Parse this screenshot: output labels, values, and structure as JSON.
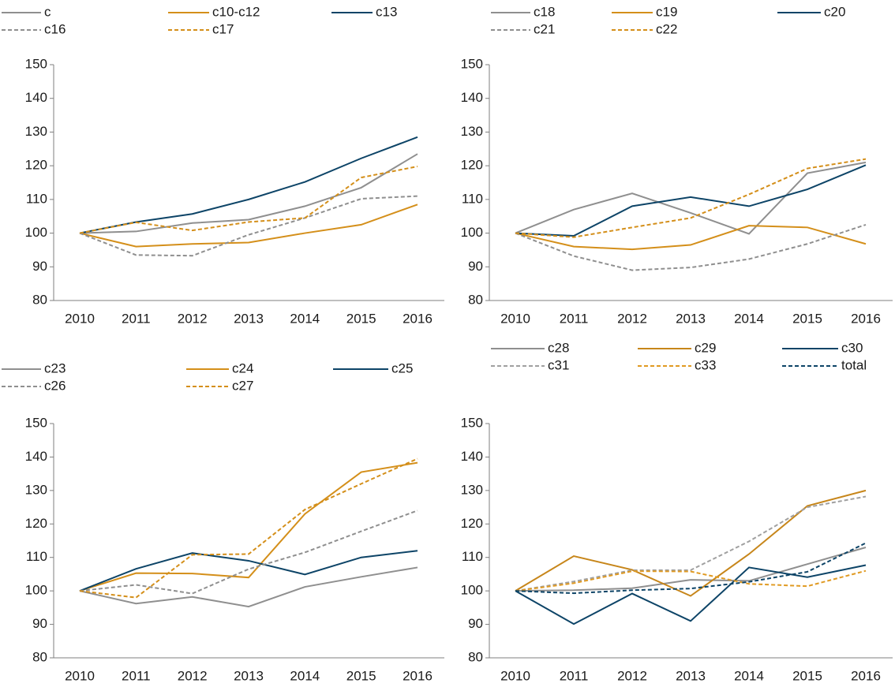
{
  "chart_data": [
    {
      "type": "line",
      "categories": [
        "2010",
        "2011",
        "2012",
        "2013",
        "2014",
        "2015",
        "2016"
      ],
      "ylim": [
        80,
        150
      ],
      "yticks": [
        80,
        90,
        100,
        110,
        120,
        130,
        140,
        150
      ],
      "series": [
        {
          "name": "c",
          "color": "#8f8f8f",
          "dashed": false,
          "values": [
            100,
            100.5,
            103,
            104,
            108,
            113.5,
            123.5
          ]
        },
        {
          "name": "c10-c12",
          "color": "#d48f1a",
          "dashed": false,
          "values": [
            100,
            96,
            96.8,
            97.2,
            100,
            102.5,
            108.5
          ]
        },
        {
          "name": "c13",
          "color": "#0d4467",
          "dashed": false,
          "values": [
            100,
            103.3,
            105.7,
            110,
            115.2,
            122.2,
            128.5
          ]
        },
        {
          "name": "c16",
          "color": "#8f8f8f",
          "dashed": true,
          "values": [
            100,
            93.5,
            93.3,
            99.5,
            104.5,
            110.2,
            111
          ]
        },
        {
          "name": "c17",
          "color": "#d48f1a",
          "dashed": true,
          "values": [
            100,
            103.2,
            100.8,
            103.3,
            104.5,
            116.5,
            119.8
          ]
        }
      ]
    },
    {
      "type": "line",
      "categories": [
        "2010",
        "2011",
        "2012",
        "2013",
        "2014",
        "2015",
        "2016"
      ],
      "ylim": [
        80,
        150
      ],
      "yticks": [
        80,
        90,
        100,
        110,
        120,
        130,
        140,
        150
      ],
      "series": [
        {
          "name": "c18",
          "color": "#8f8f8f",
          "dashed": false,
          "values": [
            100,
            107,
            111.8,
            106,
            99.8,
            117.8,
            121
          ]
        },
        {
          "name": "c19",
          "color": "#d48f1a",
          "dashed": false,
          "values": [
            100,
            96,
            95.2,
            96.5,
            102.2,
            101.7,
            96.8
          ]
        },
        {
          "name": "c20",
          "color": "#0d4467",
          "dashed": false,
          "values": [
            100,
            99.2,
            108,
            110.7,
            108,
            113,
            120.2
          ]
        },
        {
          "name": "c21",
          "color": "#8f8f8f",
          "dashed": true,
          "values": [
            100,
            93.2,
            89,
            89.8,
            92.3,
            96.8,
            102.5
          ]
        },
        {
          "name": "c22",
          "color": "#d48f1a",
          "dashed": true,
          "values": [
            100,
            98.8,
            101.7,
            104.5,
            111.5,
            119.2,
            122
          ]
        }
      ]
    },
    {
      "type": "line",
      "categories": [
        "2010",
        "2011",
        "2012",
        "2013",
        "2014",
        "2015",
        "2016"
      ],
      "ylim": [
        80,
        150
      ],
      "yticks": [
        80,
        90,
        100,
        110,
        120,
        130,
        140,
        150
      ],
      "series": [
        {
          "name": "c23",
          "color": "#8f8f8f",
          "dashed": false,
          "values": [
            100,
            96.2,
            98.2,
            95.3,
            101.2,
            104.2,
            107
          ]
        },
        {
          "name": "c24",
          "color": "#d48f1a",
          "dashed": false,
          "values": [
            100,
            105.3,
            105.2,
            104,
            123,
            135.5,
            138.3
          ]
        },
        {
          "name": "c25",
          "color": "#0d4467",
          "dashed": false,
          "values": [
            100,
            106.6,
            111.3,
            109,
            104.9,
            110,
            112
          ]
        },
        {
          "name": "c26",
          "color": "#8f8f8f",
          "dashed": true,
          "values": [
            100,
            101.8,
            99.2,
            106.5,
            111.5,
            117.8,
            124
          ]
        },
        {
          "name": "c27",
          "color": "#d48f1a",
          "dashed": true,
          "values": [
            100,
            98,
            110.8,
            111,
            124.3,
            132,
            139.5
          ]
        }
      ]
    },
    {
      "type": "line",
      "categories": [
        "2010",
        "2011",
        "2012",
        "2013",
        "2014",
        "2015",
        "2016"
      ],
      "ylim": [
        80,
        150
      ],
      "yticks": [
        80,
        90,
        100,
        110,
        120,
        130,
        140,
        150
      ],
      "series": [
        {
          "name": "c28",
          "color": "#8f8f8f",
          "dashed": false,
          "values": [
            100,
            100.2,
            100.8,
            103.3,
            103,
            108,
            113
          ]
        },
        {
          "name": "c29",
          "color": "#c7861a",
          "dashed": false,
          "values": [
            100,
            110.4,
            106.3,
            98.5,
            111,
            125.4,
            130
          ]
        },
        {
          "name": "c30",
          "color": "#0d4467",
          "dashed": false,
          "values": [
            100,
            90.1,
            99.2,
            91,
            107,
            104.1,
            107.7
          ]
        },
        {
          "name": "c31",
          "color": "#a0a0a0",
          "dashed": true,
          "values": [
            100,
            102.8,
            106.2,
            106.2,
            114.8,
            125,
            128.2
          ]
        },
        {
          "name": "c33",
          "color": "#e09a22",
          "dashed": true,
          "values": [
            100,
            102.3,
            105.9,
            105.8,
            102.1,
            101.4,
            106
          ]
        },
        {
          "name": "total",
          "color": "#0d4467",
          "dashed": true,
          "values": [
            100,
            99.3,
            100.2,
            100.7,
            102.7,
            105.7,
            114.3
          ]
        }
      ]
    }
  ]
}
